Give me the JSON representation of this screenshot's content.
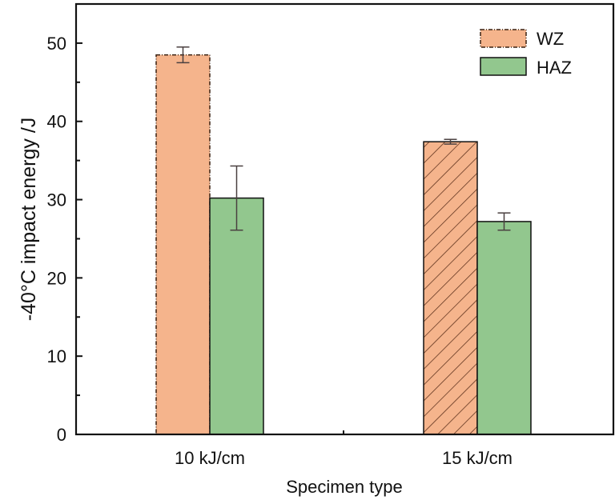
{
  "chart_data": {
    "type": "bar",
    "title": "",
    "xlabel": "Specimen type",
    "ylabel": "-40°C impact energy /J",
    "ylim": [
      0,
      55
    ],
    "yticks": [
      0,
      10,
      20,
      30,
      40,
      50
    ],
    "categories": [
      "10 kJ/cm",
      "15 kJ/cm"
    ],
    "series": [
      {
        "name": "WZ",
        "values": [
          48.5,
          37.4
        ],
        "errors": [
          1.0,
          0.3
        ],
        "color": "#F5B48C"
      },
      {
        "name": "HAZ",
        "values": [
          30.2,
          27.2
        ],
        "errors": [
          4.1,
          1.1
        ],
        "color": "#92C78E"
      }
    ],
    "legend": "top-right",
    "grid": false
  }
}
